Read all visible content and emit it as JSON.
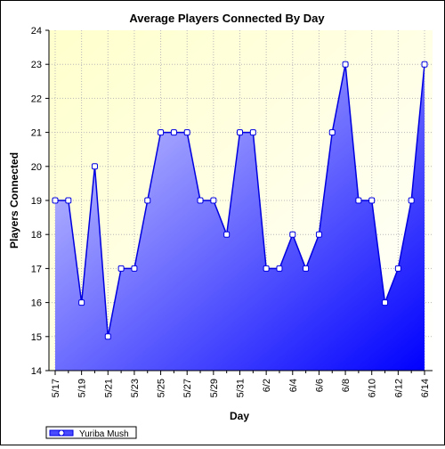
{
  "chart_data": {
    "type": "area",
    "title": "Average Players Connected By Day",
    "xlabel": "Day",
    "ylabel": "Players Connected",
    "ylim": [
      14,
      24
    ],
    "y_ticks": [
      "14",
      "15",
      "16",
      "17",
      "18",
      "19",
      "20",
      "21",
      "22",
      "23",
      "24"
    ],
    "grid": true,
    "legend": "bottom-left",
    "x_tick_labels": [
      "5/17",
      "5/19",
      "5/21",
      "5/23",
      "5/25",
      "5/27",
      "5/29",
      "5/31",
      "6/2",
      "6/4",
      "6/6",
      "6/8",
      "6/10",
      "6/12",
      "6/14"
    ],
    "x": [
      "5/17",
      "5/18",
      "5/19",
      "5/20",
      "5/21",
      "5/22",
      "5/23",
      "5/24",
      "5/25",
      "5/26",
      "5/27",
      "5/28",
      "5/29",
      "5/30",
      "5/31",
      "6/1",
      "6/2",
      "6/3",
      "6/4",
      "6/5",
      "6/6",
      "6/7",
      "6/8",
      "6/9",
      "6/10",
      "6/11",
      "6/12",
      "6/13",
      "6/14"
    ],
    "series": [
      {
        "name": "Yuriba Mush",
        "values": [
          19,
          19,
          16,
          20,
          15,
          17,
          17,
          19,
          21,
          21,
          21,
          19,
          19,
          18,
          21,
          21,
          17,
          17,
          18,
          17,
          18,
          21,
          23,
          19,
          19,
          16,
          17,
          19,
          23
        ]
      }
    ],
    "colors": {
      "plot_bg_top": "#ffffcc",
      "plot_bg_bottom": "#ffffff",
      "fill_light": "#d8d8ff",
      "fill_dark": "#0000ff",
      "line": "#0000e0",
      "marker_fill": "#ffffff"
    }
  }
}
